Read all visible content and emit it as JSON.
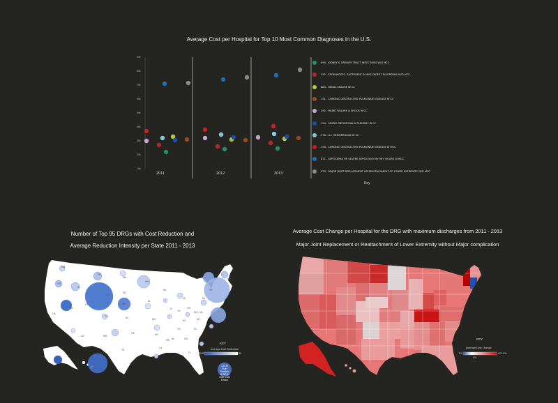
{
  "scatter": {
    "title": "Average Cost per Hospital for Top 10 Most Common Diagnoses in the U.S.",
    "years": [
      "2011",
      "2012",
      "2013"
    ],
    "yticks": [
      "90k",
      "80k",
      "70k",
      "60k",
      "50k",
      "40k",
      "30k",
      "20k",
      "10k"
    ],
    "key_label": "Key",
    "series": [
      {
        "name": "690 - KIDNEY & URINARY TRACT INFECTIONS W/O MCC",
        "color": "#2a8a6a"
      },
      {
        "name": "392 - ESOPHAGITIS, GASTROENT & MISC DIGEST DISORDERS W/O MCC",
        "color": "#b0272e"
      },
      {
        "name": "683 - RENAL FAILURE W CC",
        "color": "#b7c93a"
      },
      {
        "name": "191 - CHRONIC OBSTRUCTIVE PULMONARY DISEASE W CC",
        "color": "#9a4b22"
      },
      {
        "name": "292 - HEART FAILURE & SHOCK W CC",
        "color": "#c8a6c8"
      },
      {
        "name": "194 - SIMPLE PNEUMONIA & PLEURISY W CC",
        "color": "#1a4faa"
      },
      {
        "name": "378 - G.I. HEMORRHAGE W CC",
        "color": "#89c8d8"
      },
      {
        "name": "190 - CHRONIC OBSTRUCTIVE PULMONARY DISEASE W MCC",
        "color": "#c8201e"
      },
      {
        "name": "871 - SEPTICEMIA OR SEVERE SEPSIS W/O MV 96+ HOURS W MCC",
        "color": "#1f6fb8"
      },
      {
        "name": "470 - MAJOR JOINT REPLACEMENT OR REATTACHMENT OF LOWER EXTREMITY W/O MCC",
        "color": "#8a8a8a"
      }
    ]
  },
  "chart_data": [
    {
      "type": "scatter",
      "title": "Average Cost per Hospital for Top 10 Most Common Diagnoses in the U.S.",
      "x": [
        "2011",
        "2012",
        "2013"
      ],
      "ylim": [
        10000,
        90000
      ],
      "series": [
        {
          "name": "690 - KIDNEY & URINARY TRACT INFECTIONS W/O MCC",
          "values": [
            22000,
            24000,
            24500
          ]
        },
        {
          "name": "392 - ESOPHAGITIS, GASTROENT & MISC DIGEST DISORDERS W/O MCC",
          "values": [
            27000,
            26000,
            28500
          ]
        },
        {
          "name": "683 - RENAL FAILURE W CC",
          "values": [
            33000,
            31000,
            31500
          ]
        },
        {
          "name": "191 - CHRONIC OBSTRUCTIVE PULMONARY DISEASE W CC",
          "values": [
            31000,
            30500,
            32000
          ]
        },
        {
          "name": "292 - HEART FAILURE & SHOCK W CC",
          "values": [
            30000,
            32000,
            32500
          ]
        },
        {
          "name": "194 - SIMPLE PNEUMONIA & PLEURISY W CC",
          "values": [
            30500,
            32500,
            33000
          ]
        },
        {
          "name": "378 - G.I. HEMORRHAGE W CC",
          "values": [
            32000,
            34500,
            35000
          ]
        },
        {
          "name": "190 - CHRONIC OBSTRUCTIVE PULMONARY DISEASE W MCC",
          "values": [
            37000,
            38000,
            40500
          ]
        },
        {
          "name": "871 - SEPTICEMIA OR SEVERE SEPSIS W/O MV 96+ HOURS W MCC",
          "values": [
            71000,
            74000,
            77000
          ]
        },
        {
          "name": "470 - MAJOR JOINT REPLACEMENT OR REATTACHMENT OF LOWER EXTREMITY W/O MCC",
          "values": [
            71500,
            75500,
            81000
          ]
        }
      ]
    }
  ],
  "bubble_map": {
    "title_line1": "Number of Top 95 DRGs with Cost Reduction and",
    "title_line2": "Average Reduction Intensity per State 2011 - 2013",
    "key_label": "KEY",
    "legend_title": "Average Cost Reduction",
    "legend_min": "-$3000",
    "legend_max": "$0",
    "bubble_legend": "Circle Size: Number of DRGs with Cost Drops",
    "state_labels": [
      "WA",
      "OR",
      "CA",
      "NV",
      "ID",
      "MT",
      "WY",
      "UT",
      "CO",
      "AZ",
      "NM",
      "ND",
      "SD",
      "NE",
      "KS",
      "OK",
      "TX",
      "MN",
      "IA",
      "MO",
      "AR",
      "LA",
      "WI",
      "IL",
      "MS",
      "MI",
      "IN",
      "KY",
      "TN",
      "AL",
      "OH",
      "GA",
      "FL",
      "SC",
      "NC",
      "VA",
      "WV",
      "PA",
      "NY",
      "ME",
      "AK",
      "HI"
    ]
  },
  "heat_map": {
    "title_line1": "Average Cost Change per Hospital for the DRG with maximum discharges from 2011 - 2013",
    "title_line2": "Major Joint Replacement or Reattachment of Lower Extremity without Major complication",
    "key_label": "KEY",
    "legend_title": "Average Cost Change",
    "legend_low": "-7%",
    "legend_mid": "0%",
    "legend_high": "+21.9%"
  }
}
